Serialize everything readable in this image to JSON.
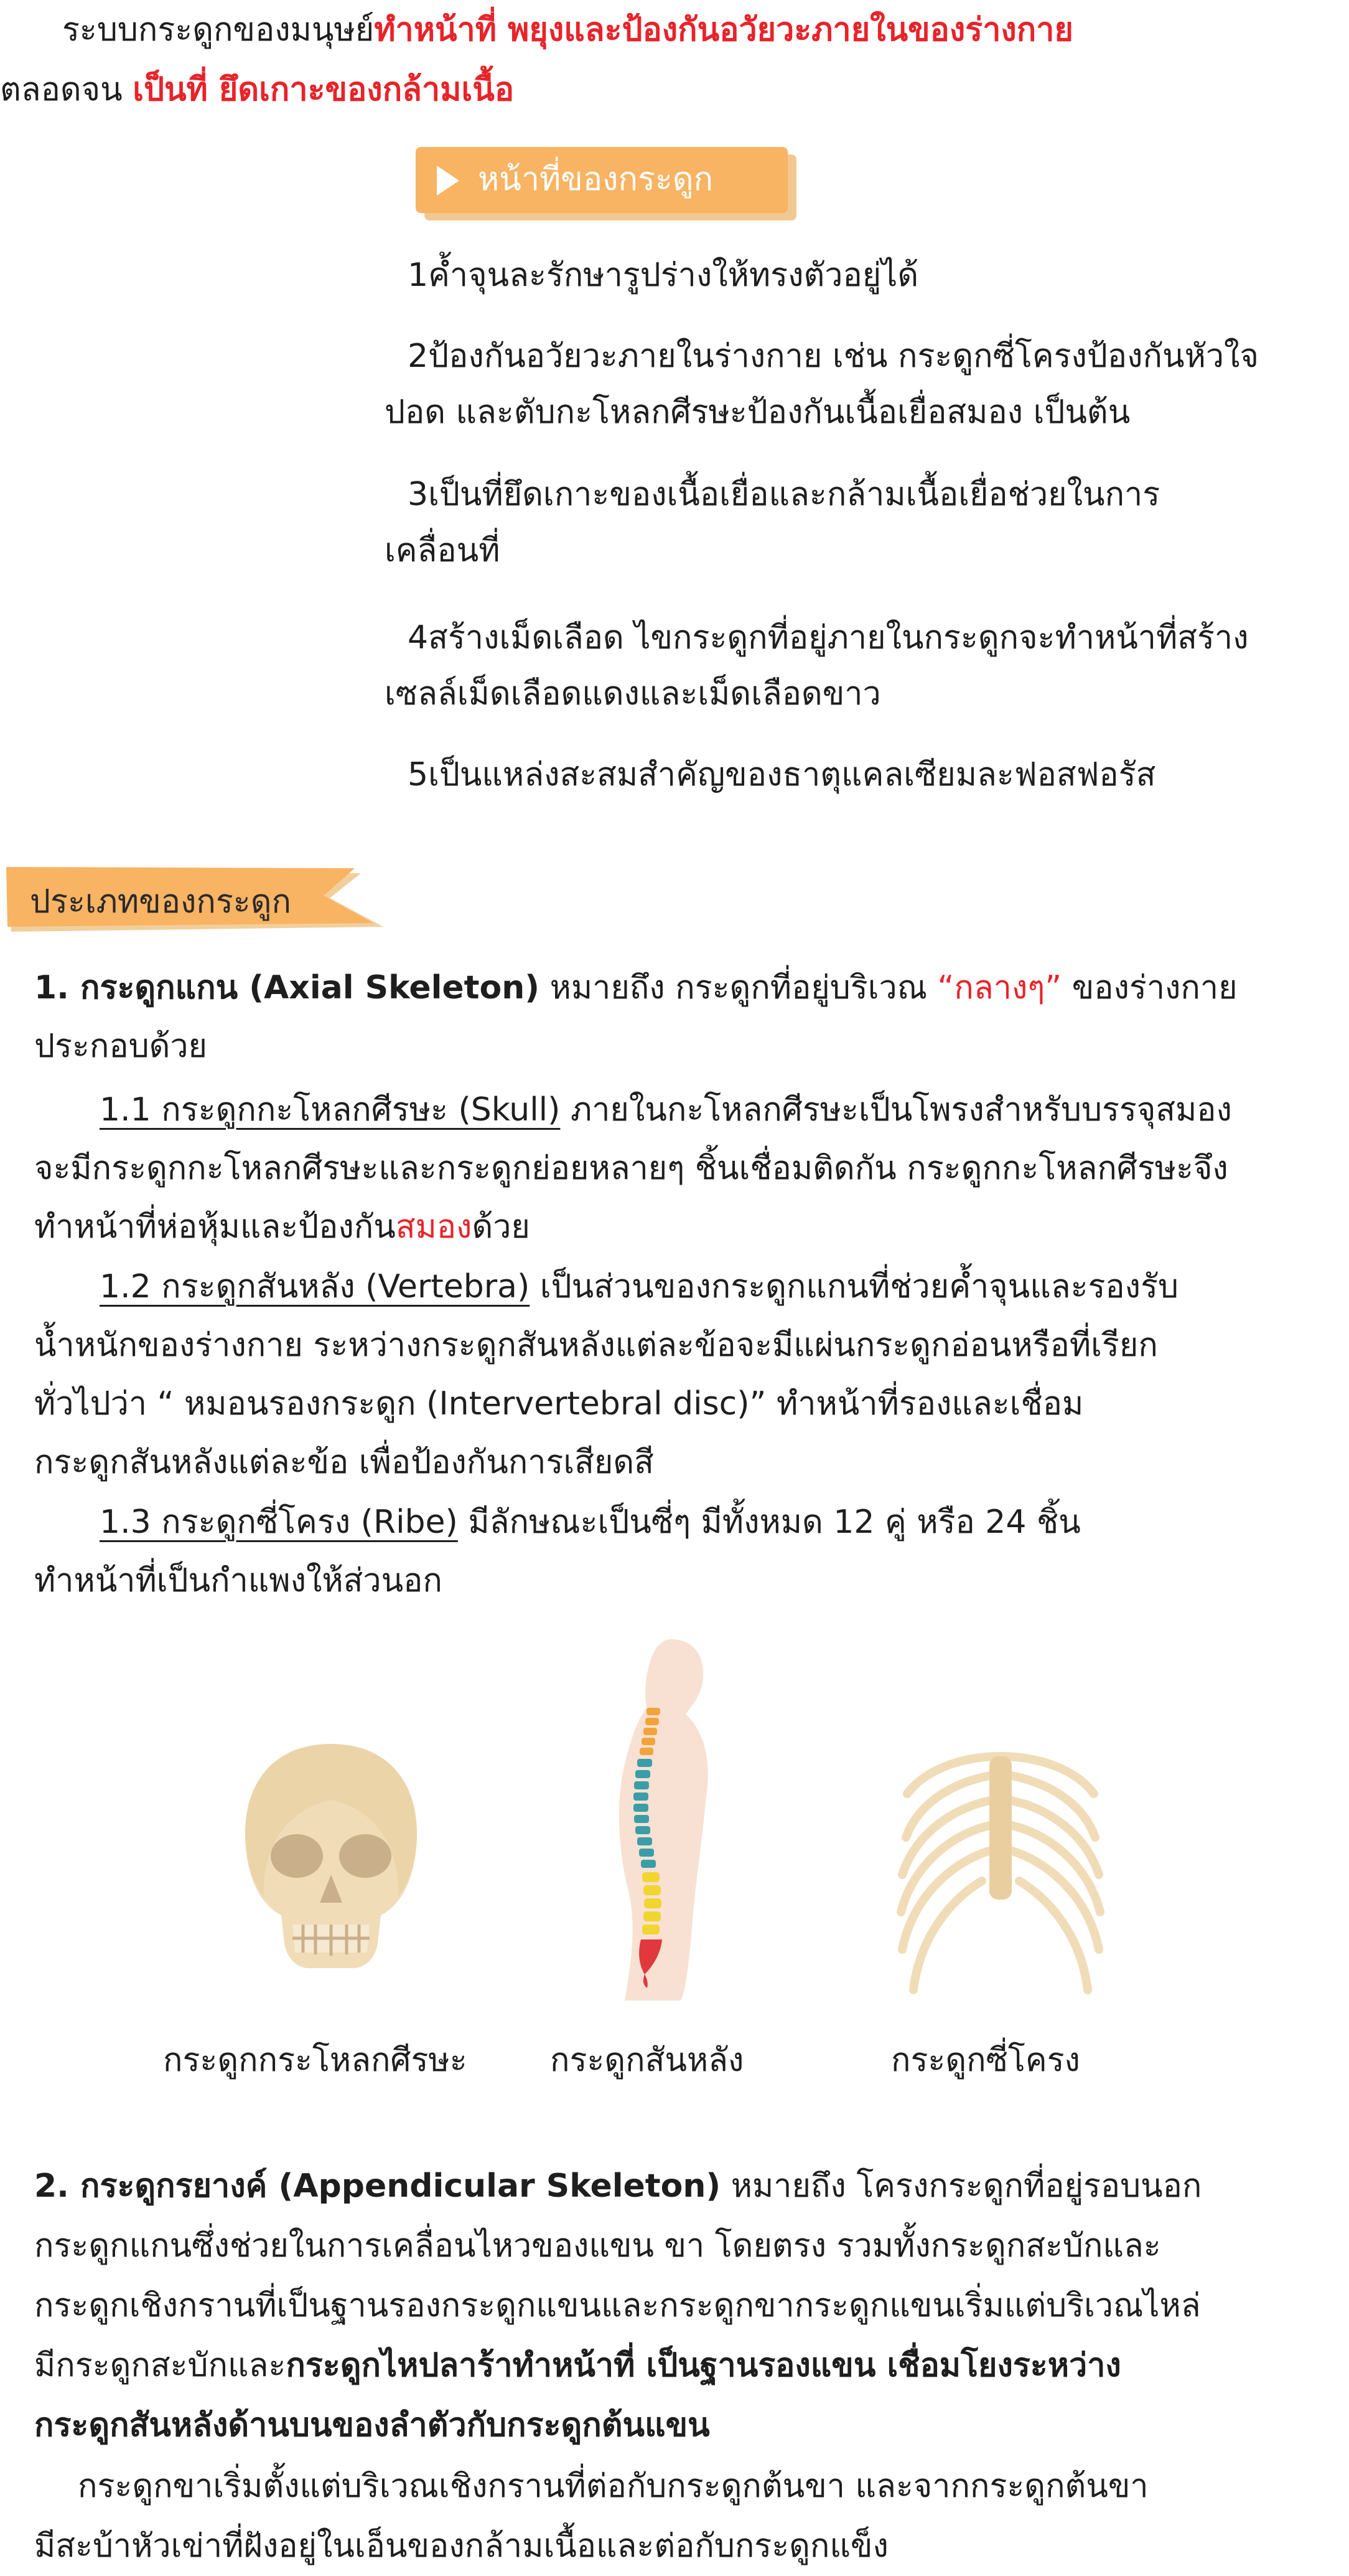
{
  "intro": {
    "line1_pre": "ระบบกระดูกของมนุษย์",
    "line1_red": "ทำหน้าที่ พยุงและป้องกันอวัยวะภายในของร่างกาย",
    "line2_pre": "ตลอดจน ",
    "line2_red": "เป็นที่ ยึดเกาะของกล้ามเนื้อ"
  },
  "functions": {
    "heading": "หน้าที่ของกระดูก",
    "items": [
      {
        "line1": "1ค้ำจุนละรักษารูปร่างให้ทรงตัวอยู่ได้"
      },
      {
        "line1": "2ป้องกันอวัยวะภายในร่างกาย เช่น กระดูกซี่โครงป้องกันหัวใจ",
        "line2": "ปอด และตับกะโหลกศีรษะป้องกันเนื้อเยื่อสมอง เป็นต้น"
      },
      {
        "line1": "3เป็นที่ยึดเกาะของเนื้อเยื่อและกล้ามเนื้อเยื่อช่วยในการ",
        "line2": "เคลื่อนที่"
      },
      {
        "line1": "4สร้างเม็ดเลือด ไขกระดูกที่อยู่ภายในกระดูกจะทำหน้าที่สร้าง",
        "line2": "เซลล์เม็ดเลือดแดงและเม็ดเลือดขาว"
      },
      {
        "line1": "5เป็นแหล่งสะสมสำคัญของธาตุแคลเซียมละฟอสฟอรัส"
      }
    ]
  },
  "types": {
    "heading": "ประเภทของกระดูก",
    "axial": {
      "title": "1. กระดูกแกน (Axial Skeleton)",
      "desc_pre": " หมายถึง กระดูกที่อยู่บริเวณ ",
      "desc_red": "“กลางๆ”",
      "desc_post": " ของร่างกาย",
      "desc_line2": "ประกอบด้วย",
      "skull_title": "1.1 กระดูกกะโหลกศีรษะ (Skull)",
      "skull_l1": " ภายในกะโหลกศีรษะเป็นโพรงสำหรับบรรจุสมอง",
      "skull_l2": "จะมีกระดูกกะโหลกศีรษะและกระดูกย่อยหลายๆ ชิ้นเชื่อมติดกัน กระดูกกะโหลกศีรษะจึง",
      "skull_l3_pre": "ทำหน้าที่ห่อหุ้มและป้องกัน",
      "skull_l3_red": "สมอง",
      "skull_l3_post": "ด้วย",
      "vert_title": "1.2 กระดูกสันหลัง (Vertebra)",
      "vert_l1": " เป็นส่วนของกระดูกแกนที่ช่วยค้ำจุนและรองรับ",
      "vert_l2": "น้ำหนักของร่างกาย ระหว่างกระดูกสันหลังแต่ละข้อจะมีแผ่นกระดูกอ่อนหรือที่เรียก",
      "vert_l3": "ทั่วไปว่า “ หมอนรองกระดูก (Intervertebral disc)” ทำหน้าที่รองและเชื่อม",
      "vert_l4": "กระดูกสันหลังแต่ละข้อ เพื่อป้องกันการเสียดสี",
      "rib_title": "1.3 กระดูกซี่โครง (Ribe)",
      "rib_l1": " มีลักษณะเป็นซี่ๆ มีทั้งหมด 12 คู่ หรือ 24 ชิ้น",
      "rib_l2": "ทำหน้าที่เป็นกำแพงให้ส่วนอก"
    },
    "captions": {
      "skull": "กระดูกกระโหลกศีรษะ",
      "spine": "กระดูกสันหลัง",
      "ribs": "กระดูกซี่โครง"
    },
    "appendicular": {
      "title": "2. กระดูกรยางค์ (Appendicular Skeleton)",
      "l1_post": " หมายถึง โครงกระดูกที่อยู่รอบนอก",
      "l2": "กระดูกแกนซึ่งช่วยในการเคลื่อนไหวของแขน ขา โดยตรง รวมทั้งกระดูกสะบักและ",
      "l3": "กระดูกเชิงกรานที่เป็นฐานรองกระดูกแขนและกระดูกขากระดูกแขนเริ่มแต่บริเวณไหล่",
      "l4_pre": "มีกระดูกสะบักและ",
      "l4_bold": "กระดูกไหปลาร้าทำหน้าที่ เป็นฐานรองแขน เชื่อมโยงระหว่าง",
      "l5_bold": "กระดูกสันหลังด้านบนของลำตัวกับกระดูกต้นแขน",
      "l6": "กระดูกขาเริ่มตั้งแต่บริเวณเชิงกรานที่ต่อกับกระดูกต้นขา และจากกระดูกต้นขา",
      "l7": "มีสะบ้าหัวเข่าที่ฝังอยู่ในเอ็นของกล้ามเนื้อและต่อกับกระดูกแข็ง"
    }
  }
}
